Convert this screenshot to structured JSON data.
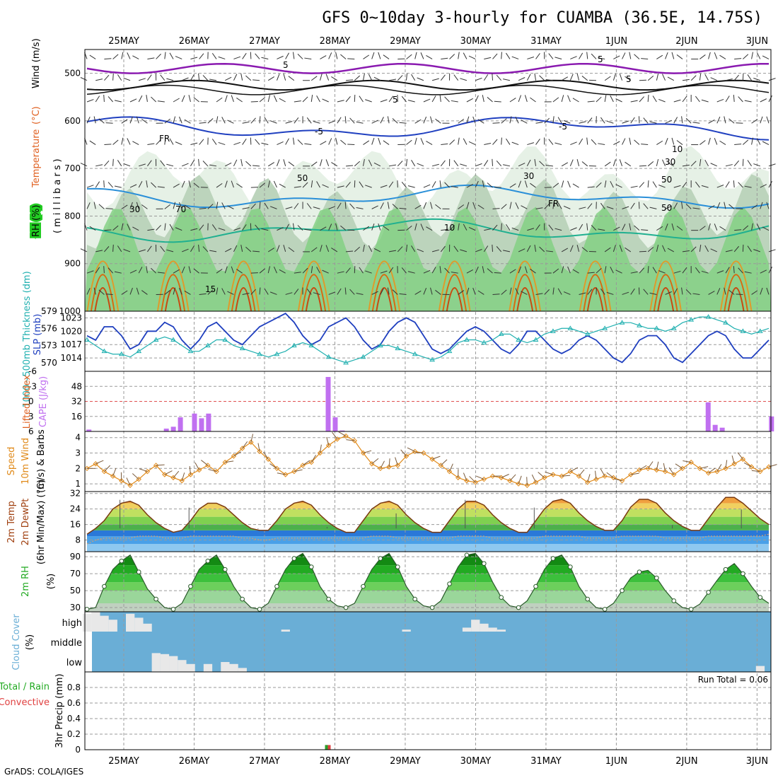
{
  "title": "GFS 0~10day 3-hourly for CUAMBA (36.5E, 14.75S)",
  "credit": "GrADS: COLA/IGES",
  "dates": [
    "25MAY",
    "26MAY",
    "27MAY",
    "28MAY",
    "29MAY",
    "30MAY",
    "31MAY",
    "1JUN",
    "2JUN",
    "3JUN"
  ],
  "colors": {
    "grid": "#9a9a9a",
    "rh": "#22aa22",
    "temp_warm": "#e06010",
    "slp": "#1f3fbf",
    "thick": "#20b0b0",
    "cape": "#c070f0",
    "wind": "#e08a1a",
    "rh2m": "#22aa22",
    "cloud_bg": "#6aaed6",
    "cloud": "#e8e8e8"
  },
  "chart_data": [
    {
      "panel": "upper-air",
      "type": "heatmap",
      "ylabel_parts": [
        "RH (%)",
        "Temperature",
        "(°C)",
        "Wind (m/s)"
      ],
      "ylabel_sub": "(millibars)",
      "yticks": [
        500,
        600,
        700,
        800,
        900,
        1000
      ],
      "ylim": [
        1000,
        450
      ],
      "contour_labels": [
        "5",
        "5",
        "5",
        "5",
        "-5",
        "-5",
        "FR",
        "FR",
        "10",
        "15",
        "10",
        "30",
        "30",
        "50",
        "50",
        "50",
        "70",
        "30"
      ]
    },
    {
      "panel": "slp-thickness",
      "type": "line",
      "ylabel": "SLP (mb)",
      "ylabel2": "1000~500mb Thickness (dm)",
      "yticks_left": [
        570,
        573,
        576,
        579
      ],
      "yticks_right": [
        1014,
        1017,
        1020,
        1023
      ],
      "series": [
        {
          "name": "SLP (mb)",
          "values": [
            1019,
            1018,
            1021,
            1021,
            1019,
            1016,
            1017,
            1020,
            1020,
            1022,
            1021,
            1018,
            1016,
            1018,
            1021,
            1022,
            1020,
            1018,
            1017,
            1019,
            1021,
            1022,
            1023,
            1024,
            1022,
            1019,
            1017,
            1018,
            1021,
            1022,
            1023,
            1021,
            1018,
            1016,
            1017,
            1020,
            1022,
            1023,
            1022,
            1019,
            1016,
            1015,
            1016,
            1018,
            1020,
            1021,
            1020,
            1018,
            1016,
            1015,
            1017,
            1020,
            1020,
            1018,
            1016,
            1015,
            1016,
            1018,
            1019,
            1018,
            1016,
            1014,
            1013,
            1015,
            1018,
            1019,
            1019,
            1017,
            1014,
            1013,
            1015,
            1017,
            1019,
            1020,
            1019,
            1016,
            1014,
            1014,
            1016,
            1018
          ]
        },
        {
          "name": "1000~500mb Thickness (dm)",
          "values": [
            574,
            573,
            572,
            571.5,
            571.5,
            571,
            572,
            573,
            574,
            574.5,
            574,
            573,
            572,
            572,
            573,
            574,
            574,
            573,
            572.5,
            572,
            571.5,
            571,
            571.5,
            572,
            573,
            573.5,
            573,
            572,
            571,
            570.5,
            570,
            570.5,
            571,
            572,
            573,
            573,
            572.5,
            572,
            571.5,
            571,
            570.5,
            571,
            572,
            573.5,
            574,
            574,
            573.5,
            574,
            575,
            575,
            574,
            573.5,
            574,
            575,
            575.5,
            576,
            576,
            575.5,
            575,
            575.5,
            576,
            576.5,
            577,
            577,
            576.5,
            576,
            576,
            575.5,
            576,
            577,
            577.5,
            578,
            578,
            577.5,
            577,
            576,
            575.5,
            575,
            575.5,
            576
          ]
        }
      ]
    },
    {
      "panel": "cape-li",
      "type": "bar",
      "ylabel": "CAPE (J/kg)",
      "ylabel2": "Lifted Index",
      "yticks_left": [
        16,
        32,
        48
      ],
      "yticks_right": [
        "6",
        "3",
        "0",
        "-3",
        "-6"
      ],
      "ylim": [
        0,
        64
      ],
      "x": [
        0.0,
        1.0,
        1.1,
        1.2,
        1.3,
        1.5,
        1.6,
        1.7,
        3.4,
        3.5,
        3.6,
        8.8,
        8.9,
        9.0,
        9.7
      ],
      "values": [
        2,
        0,
        3,
        5,
        15,
        19,
        14,
        19,
        58,
        15,
        1,
        31,
        7,
        4,
        16
      ]
    },
    {
      "panel": "wind10m",
      "type": "line",
      "ylabel": "10m Wind Speed (m/s) & Barbs",
      "yticks": [
        1,
        2,
        3,
        4
      ],
      "ylim": [
        0.5,
        4.4
      ],
      "series": [
        {
          "name": "Speed",
          "values": [
            2.0,
            2.3,
            1.8,
            1.5,
            1.2,
            0.9,
            1.3,
            1.8,
            2.2,
            1.6,
            1.4,
            1.2,
            1.6,
            1.9,
            2.2,
            1.8,
            2.4,
            2.8,
            3.3,
            3.7,
            3.1,
            2.6,
            2.0,
            1.6,
            1.8,
            2.2,
            2.4,
            3.0,
            3.5,
            3.9,
            4.1,
            3.8,
            3.0,
            2.3,
            2.0,
            2.1,
            2.2,
            2.8,
            3.1,
            3.0,
            2.6,
            2.2,
            1.8,
            1.4,
            1.2,
            1.1,
            1.3,
            1.5,
            1.4,
            1.2,
            1.0,
            0.9,
            1.1,
            1.4,
            1.6,
            1.5,
            1.8,
            1.5,
            1.1,
            1.3,
            1.5,
            1.4,
            1.2,
            1.6,
            1.9,
            2.0,
            1.9,
            1.8,
            1.6,
            2.0,
            2.4,
            2.0,
            1.7,
            1.8,
            2.0,
            2.3,
            2.6,
            2.1,
            1.8,
            2.1
          ]
        }
      ]
    },
    {
      "panel": "temp2m",
      "type": "area",
      "ylabel": "2m Temp 2m DewPt (6hr Min/Max) (°C)",
      "yticks": [
        8,
        16,
        24,
        32
      ],
      "ylim": [
        2,
        33
      ],
      "series": [
        {
          "name": "2m Temp",
          "values": [
            11,
            14,
            18,
            24,
            27,
            28,
            26,
            21,
            17,
            14,
            12,
            13,
            18,
            24,
            27,
            27,
            25,
            21,
            17,
            14,
            13,
            13,
            18,
            24,
            27,
            28,
            26,
            21,
            17,
            14,
            12,
            12,
            18,
            24,
            27,
            28,
            26,
            21,
            17,
            14,
            12,
            12,
            18,
            24,
            28,
            28,
            26,
            21,
            17,
            14,
            12,
            12,
            18,
            24,
            28,
            29,
            27,
            22,
            18,
            15,
            13,
            13,
            18,
            25,
            29,
            29,
            27,
            22,
            18,
            15,
            13,
            13,
            19,
            25,
            30,
            30,
            27,
            23,
            19,
            16
          ]
        },
        {
          "name": "2m DewPt",
          "values": [
            6,
            8,
            9,
            9,
            9,
            9,
            10,
            10,
            10,
            9,
            9,
            9,
            10,
            10,
            10,
            10,
            10,
            10,
            9,
            9,
            8,
            8,
            9,
            9,
            9,
            9,
            9,
            9,
            9,
            9,
            9,
            9,
            9,
            10,
            10,
            10,
            9,
            9,
            9,
            9,
            9,
            9,
            9,
            10,
            10,
            10,
            10,
            9,
            9,
            9,
            9,
            9,
            9,
            10,
            10,
            10,
            10,
            10,
            9,
            9,
            9,
            9,
            10,
            10,
            10,
            10,
            10,
            9,
            9,
            9,
            9,
            9,
            10,
            10,
            10,
            10,
            10,
            10,
            10,
            11
          ]
        }
      ]
    },
    {
      "panel": "rh2m",
      "type": "area",
      "ylabel": "2m RH (%)",
      "yticks": [
        30,
        50,
        70,
        90
      ],
      "ylim": [
        25,
        96
      ],
      "series": [
        {
          "name": "2m RH",
          "values": [
            28,
            30,
            55,
            75,
            85,
            92,
            72,
            52,
            40,
            30,
            28,
            35,
            55,
            75,
            85,
            92,
            75,
            55,
            40,
            30,
            28,
            35,
            55,
            75,
            88,
            94,
            78,
            55,
            40,
            32,
            30,
            35,
            55,
            75,
            88,
            94,
            78,
            55,
            40,
            32,
            30,
            38,
            58,
            78,
            92,
            94,
            82,
            60,
            42,
            32,
            30,
            38,
            55,
            75,
            88,
            92,
            78,
            55,
            40,
            30,
            28,
            35,
            50,
            65,
            72,
            74,
            65,
            50,
            38,
            30,
            28,
            34,
            48,
            62,
            75,
            82,
            70,
            55,
            42,
            35
          ]
        }
      ]
    },
    {
      "panel": "cloud",
      "type": "bar",
      "ylabel": "Cloud Cover (%)",
      "yticks": [
        "high",
        "middle",
        "low"
      ],
      "series": [
        {
          "name": "high",
          "values": [
            90,
            100,
            80,
            60,
            0,
            90,
            70,
            40,
            0,
            0,
            0,
            0,
            0,
            0,
            0,
            0,
            0,
            0,
            0,
            0,
            0,
            0,
            0,
            10,
            0,
            0,
            0,
            0,
            0,
            0,
            0,
            0,
            0,
            0,
            0,
            0,
            0,
            10,
            0,
            0,
            0,
            0,
            0,
            0,
            20,
            60,
            40,
            20,
            10,
            0,
            0,
            0,
            0,
            0,
            0,
            0,
            0,
            0,
            0,
            0,
            0,
            0,
            0,
            0,
            0,
            0,
            0,
            0,
            0,
            0,
            0,
            0,
            0,
            0,
            0,
            0,
            0,
            0,
            0,
            0
          ]
        },
        {
          "name": "low",
          "values": [
            0,
            0,
            0,
            0,
            0,
            0,
            0,
            0,
            95,
            90,
            80,
            60,
            40,
            0,
            40,
            0,
            50,
            40,
            20,
            0,
            0,
            0,
            0,
            0,
            0,
            0,
            0,
            0,
            0,
            0,
            0,
            0,
            0,
            0,
            0,
            0,
            0,
            0,
            0,
            0,
            0,
            0,
            0,
            0,
            0,
            0,
            0,
            0,
            0,
            0,
            0,
            0,
            0,
            0,
            0,
            0,
            0,
            0,
            0,
            0,
            0,
            0,
            0,
            0,
            0,
            0,
            0,
            0,
            0,
            0,
            0,
            0,
            0,
            0,
            0,
            0,
            0,
            0,
            30,
            0
          ]
        }
      ]
    },
    {
      "panel": "precip",
      "type": "bar",
      "ylabel": "3hr Precip (mm)",
      "ylabel2": "Total / Rain",
      "ylabel3": "Convective",
      "yticks": [
        0,
        0.2,
        0.4,
        0.6,
        0.8
      ],
      "ylim": [
        0,
        1.0
      ],
      "annotation": "Run Total = 0.06",
      "x": [
        3.4
      ],
      "values": [
        0.06
      ]
    }
  ]
}
